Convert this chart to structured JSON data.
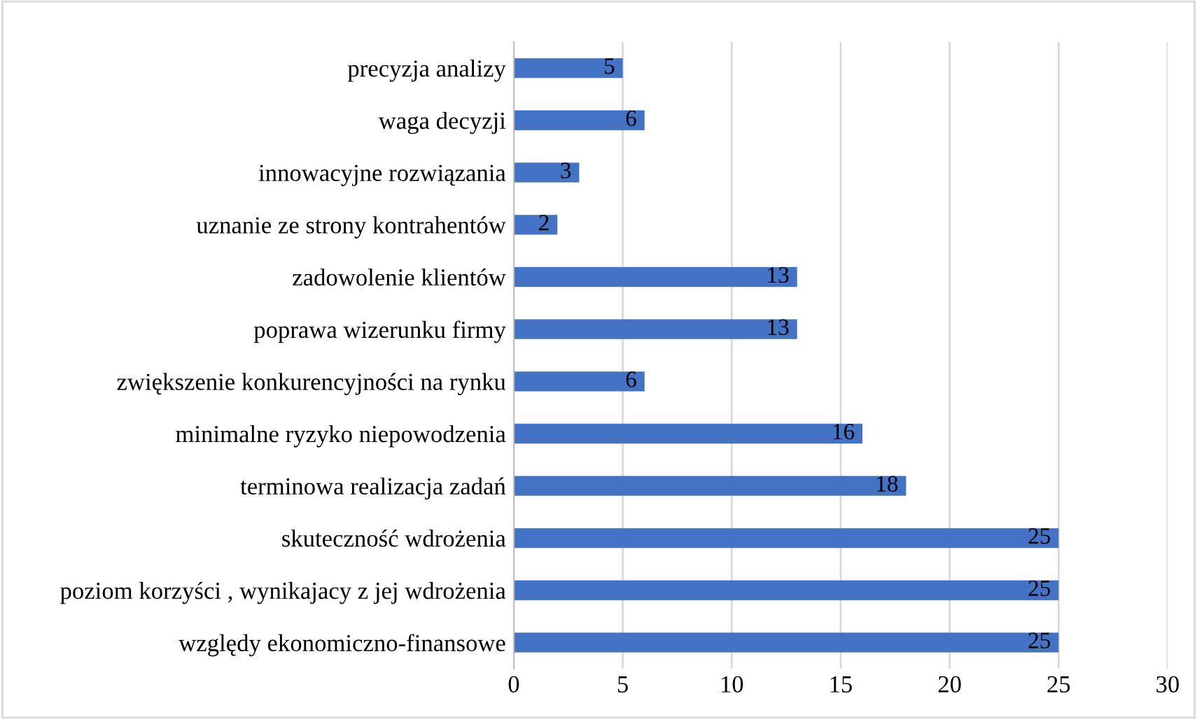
{
  "chart_data": {
    "type": "bar",
    "orientation": "horizontal",
    "categories": [
      "precyzja analizy",
      "waga decyzji",
      "innowacyjne rozwiązania",
      "uznanie ze strony kontrahentów",
      "zadowolenie klientów",
      "poprawa wizerunku firmy",
      "zwiększenie konkurencyjności na rynku",
      "minimalne ryzyko niepowodzenia",
      "terminowa realizacja zadań",
      "skuteczność wdrożenia",
      "poziom korzyści , wynikajacy z jej wdrożenia",
      "względy ekonomiczno-finansowe"
    ],
    "values": [
      5,
      6,
      3,
      2,
      13,
      13,
      6,
      16,
      18,
      25,
      25,
      25
    ],
    "color": "#4472c4",
    "xlim": [
      0,
      30
    ],
    "xticks": [
      0,
      5,
      10,
      15,
      20,
      25,
      30
    ],
    "grid": "x",
    "data_labels": true
  }
}
